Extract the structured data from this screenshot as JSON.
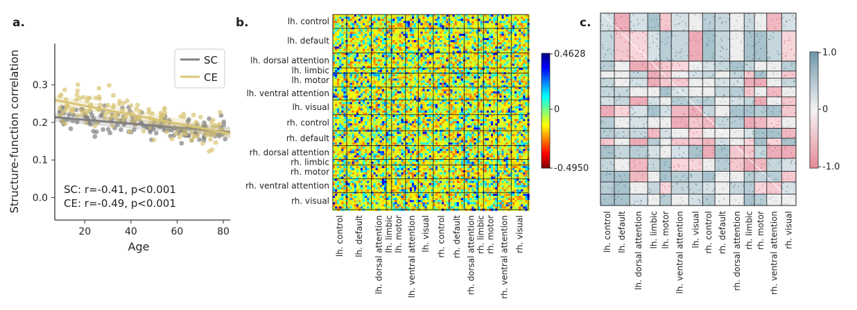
{
  "chart_data": [
    {
      "panel": "a.",
      "type": "scatter",
      "xlabel": "Age",
      "ylabel": "Structure-function correlation",
      "xlim": [
        7,
        83
      ],
      "ylim": [
        -0.06,
        0.41
      ],
      "xticks": [
        20,
        40,
        60,
        80
      ],
      "yticks": [
        0.0,
        0.1,
        0.2,
        0.3
      ],
      "legend_position": "top-right",
      "series": [
        {
          "name": "SC",
          "color": "#808080",
          "fit": {
            "intercept": 0.2175,
            "slope": -0.00052
          }
        },
        {
          "name": "CE",
          "color": "#d9c474",
          "fit": {
            "intercept": 0.268,
            "slope": -0.00118
          }
        }
      ],
      "stats": [
        "SC: r=-0.41, p<0.001",
        "CE: r=-0.49, p<0.001"
      ]
    },
    {
      "panel": "b.",
      "type": "heatmap",
      "row_labels": [
        "lh. control",
        "lh. default",
        "lh. dorsal attention",
        "lh. limbic",
        "lh. motor",
        "lh. ventral attention",
        "lh. visual",
        "rh. control",
        "rh. default",
        "rh. dorsal attention",
        "rh. limbic",
        "rh. motor",
        "rh. ventral attention",
        "rh. visual"
      ],
      "block_sizes": [
        13,
        23,
        14,
        5,
        13,
        12,
        14,
        15,
        14,
        13,
        5,
        13,
        13,
        16
      ],
      "colorbar": {
        "max": 0.4628,
        "mid": 0,
        "min": -0.495,
        "max_label": "0.4628",
        "mid_label": "0",
        "min_label": "-0.4950"
      }
    },
    {
      "panel": "c.",
      "type": "heatmap",
      "col_labels": [
        "lh. control",
        "lh. default",
        "lh. dorsal attention",
        "lh. limbic",
        "lh. motor",
        "lh. ventral attention",
        "lh. visual",
        "rh. control",
        "rh. default",
        "rh. dorsal attention",
        "rh. limbic",
        "rh. motor",
        "rh. ventral attention",
        "rh. visual"
      ],
      "colorbar": {
        "max": 1.0,
        "mid": 0,
        "min": -1.0,
        "max_label": "1.0",
        "mid_label": "0",
        "min_label": "-1.0"
      }
    }
  ]
}
